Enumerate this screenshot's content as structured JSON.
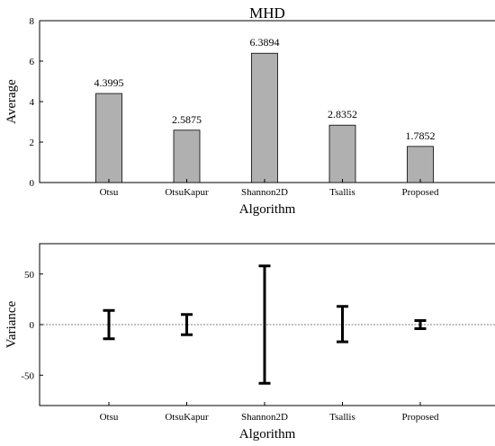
{
  "chart_data": [
    {
      "type": "bar",
      "title": "MHD",
      "xlabel": "Algorithm",
      "ylabel": "Average",
      "categories": [
        "Otsu",
        "OtsuKapur",
        "Shannon2D",
        "Tsallis",
        "Proposed"
      ],
      "values": [
        4.3995,
        2.5875,
        6.3894,
        2.8352,
        1.7852
      ],
      "data_labels": [
        "4.3995",
        "2.5875",
        "6.3894",
        "2.8352",
        "1.7852"
      ],
      "ylim": [
        0,
        8
      ],
      "yticks": [
        0,
        2,
        4,
        6,
        8
      ],
      "bar_color": "#b0b0b0",
      "grid": false
    },
    {
      "type": "errorbar",
      "title": "",
      "xlabel": "Algorithm",
      "ylabel": "Variance",
      "categories": [
        "Otsu",
        "OtsuKapur",
        "Shannon2D",
        "Tsallis",
        "Proposed"
      ],
      "low": [
        -14,
        -10,
        -58,
        -17,
        -4
      ],
      "high": [
        14,
        10,
        58,
        18,
        4
      ],
      "ylim": [
        -80,
        80
      ],
      "yticks": [
        -50,
        0,
        50
      ],
      "zero_line": true,
      "grid": false
    }
  ]
}
